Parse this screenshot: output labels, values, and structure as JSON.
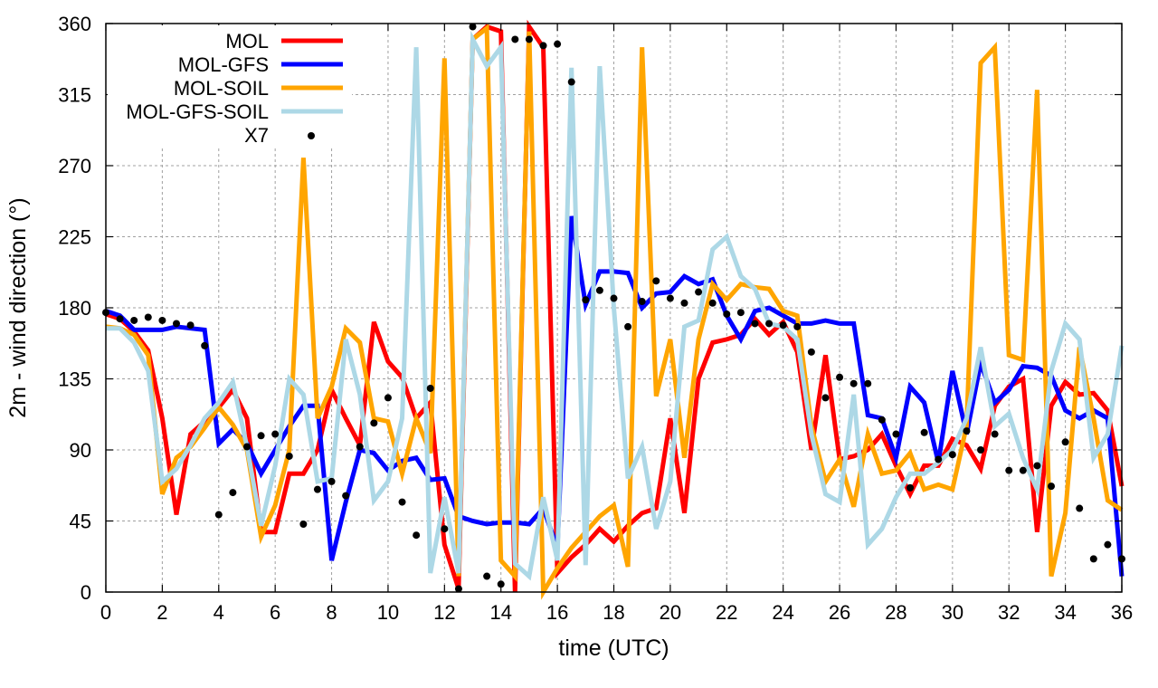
{
  "chart_data": {
    "type": "line",
    "title": "",
    "xlabel": "time (UTC)",
    "ylabel": "2m - wind direction (°)",
    "xlim": [
      0,
      36
    ],
    "ylim": [
      0,
      360
    ],
    "xticks": [
      "0",
      "2",
      "4",
      "6",
      "8",
      "10",
      "12",
      "14",
      "16",
      "18",
      "20",
      "22",
      "24",
      "26",
      "28",
      "30",
      "32",
      "34",
      "36"
    ],
    "yticks": [
      "0",
      "45",
      "90",
      "135",
      "180",
      "225",
      "270",
      "315",
      "360"
    ],
    "grid": true,
    "legend_position": "top-left",
    "x": [
      0,
      0.5,
      1,
      1.5,
      2,
      2.5,
      3,
      3.5,
      4,
      4.5,
      5,
      5.5,
      6,
      6.5,
      7,
      7.5,
      8,
      8.5,
      9,
      9.5,
      10,
      10.5,
      11,
      11.5,
      12,
      12.5,
      13,
      13.5,
      14,
      14.5,
      15,
      15.5,
      16,
      16.5,
      17,
      17.5,
      18,
      18.5,
      19,
      19.5,
      20,
      20.5,
      21,
      21.5,
      22,
      22.5,
      23,
      23.5,
      24,
      24.5,
      25,
      25.5,
      26,
      26.5,
      27,
      27.5,
      28,
      28.5,
      29,
      29.5,
      30,
      30.5,
      31,
      31.5,
      32,
      32.5,
      33,
      33.5,
      34,
      34.5,
      35,
      35.5,
      36
    ],
    "series": [
      {
        "name": "MOL",
        "color": "#ff0000",
        "style": "line",
        "values": [
          176,
          173,
          165,
          153,
          110,
          49,
          100,
          108,
          117,
          128,
          110,
          38,
          38,
          75,
          75,
          90,
          128,
          110,
          93,
          171,
          146,
          136,
          110,
          120,
          30,
          2,
          350,
          358,
          355,
          0,
          358,
          345,
          12,
          22,
          30,
          40,
          32,
          42,
          50,
          53,
          110,
          50,
          135,
          158,
          160,
          163,
          173,
          163,
          171,
          152,
          90,
          150,
          84,
          86,
          90,
          100,
          80,
          62,
          80,
          80,
          97,
          93,
          78,
          118,
          130,
          135,
          38,
          118,
          133,
          125,
          126,
          115,
          67
        ]
      },
      {
        "name": "MOL-GFS",
        "color": "#0000ff",
        "style": "line",
        "values": [
          178,
          175,
          166,
          166,
          166,
          168,
          167,
          166,
          94,
          103,
          94,
          75,
          90,
          105,
          118,
          118,
          20,
          57,
          90,
          88,
          77,
          83,
          85,
          71,
          72,
          48,
          45,
          43,
          44,
          44,
          43,
          53,
          28,
          238,
          182,
          203,
          203,
          202,
          180,
          189,
          190,
          200,
          195,
          198,
          175,
          160,
          178,
          180,
          175,
          170,
          170,
          172,
          170,
          170,
          112,
          110,
          85,
          130,
          120,
          82,
          140,
          100,
          145,
          120,
          128,
          143,
          142,
          137,
          115,
          110,
          115,
          110,
          10
        ]
      },
      {
        "name": "MOL-SOIL",
        "color": "#ffa500",
        "style": "line",
        "values": [
          168,
          167,
          163,
          150,
          62,
          85,
          92,
          104,
          117,
          106,
          90,
          35,
          55,
          90,
          275,
          110,
          130,
          167,
          158,
          110,
          108,
          75,
          110,
          88,
          338,
          10,
          350,
          357,
          20,
          10,
          355,
          0,
          15,
          28,
          38,
          48,
          55,
          16,
          345,
          124,
          160,
          85,
          160,
          195,
          185,
          195,
          193,
          192,
          178,
          175,
          105,
          70,
          84,
          54,
          100,
          75,
          77,
          88,
          65,
          68,
          65,
          105,
          335,
          345,
          150,
          147,
          318,
          10,
          50,
          155,
          110,
          58,
          52
        ]
      },
      {
        "name": "MOL-GFS-SOIL",
        "color": "#add8e6",
        "style": "line",
        "values": [
          167,
          167,
          158,
          140,
          70,
          78,
          93,
          110,
          120,
          133,
          92,
          42,
          80,
          135,
          125,
          70,
          72,
          160,
          125,
          58,
          70,
          110,
          345,
          12,
          60,
          12,
          350,
          333,
          345,
          18,
          10,
          60,
          20,
          332,
          17,
          333,
          180,
          72,
          92,
          40,
          70,
          168,
          172,
          217,
          225,
          200,
          192,
          170,
          168,
          160,
          100,
          62,
          57,
          125,
          30,
          40,
          60,
          75,
          75,
          82,
          90,
          110,
          155,
          105,
          113,
          85,
          65,
          140,
          170,
          160,
          85,
          100,
          156
        ]
      },
      {
        "name": "X7",
        "color": "#000000",
        "style": "points",
        "values": [
          177,
          173,
          172,
          174,
          172,
          170,
          169,
          156,
          49,
          63,
          92,
          99,
          100,
          86,
          43,
          65,
          70,
          61,
          92,
          107,
          123,
          57,
          36,
          129,
          40,
          2,
          358,
          10,
          5,
          350,
          350,
          346,
          347,
          323,
          185,
          191,
          186,
          168,
          184,
          197,
          186,
          183,
          190,
          183,
          176,
          177,
          170,
          170,
          169,
          168,
          152,
          123,
          136,
          132,
          132,
          109,
          100,
          66,
          101,
          84,
          87,
          102,
          90,
          100,
          77,
          77,
          80,
          67,
          95,
          53,
          21,
          30,
          21
        ]
      }
    ]
  }
}
